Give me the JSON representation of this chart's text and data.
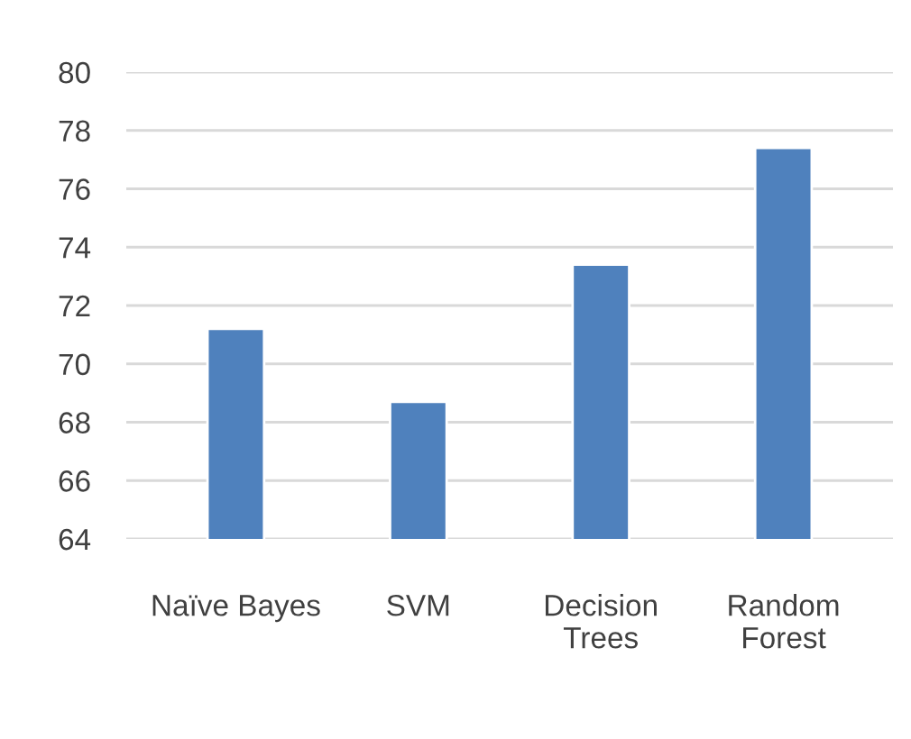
{
  "chart_data": {
    "type": "bar",
    "categories": [
      "Naïve Bayes",
      "SVM",
      "Decision\nTrees",
      "Random\nForest"
    ],
    "values": [
      71.2,
      68.7,
      73.4,
      77.4
    ],
    "color": "#4f81bd",
    "ylim": [
      64,
      80
    ],
    "yticks": [
      64,
      66,
      68,
      70,
      72,
      74,
      76,
      78,
      80
    ],
    "grid": "y"
  }
}
